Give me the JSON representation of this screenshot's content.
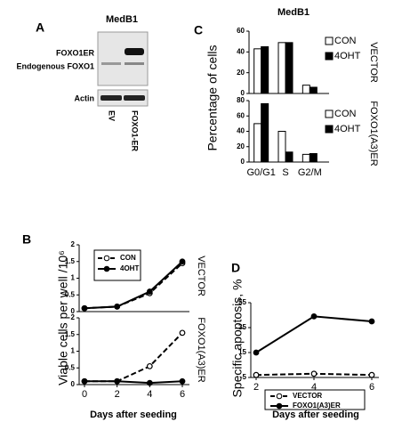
{
  "panel_labels": [
    "A",
    "B",
    "C",
    "D"
  ],
  "blot": {
    "title": "MedB1",
    "bands": [
      "FOXO1ER",
      "Endogenous FOXO1"
    ],
    "loading": "Actin",
    "lanes": [
      "EV",
      "FOXO1-ER"
    ]
  },
  "chart_data": [
    {
      "type": "bar",
      "title": "MedB1",
      "ylabel": "Percentage of cells",
      "side_label": "VECTOR",
      "categories": [
        null,
        null,
        null
      ],
      "ylim": [
        0,
        60
      ],
      "yticks": [
        0,
        20,
        40,
        60
      ],
      "legend": "upper right",
      "series": [
        {
          "name": "CON",
          "color": "#ffffff",
          "values": [
            43,
            49,
            8
          ]
        },
        {
          "name": "4OHT",
          "color": "#000000",
          "values": [
            45,
            49,
            6
          ]
        }
      ]
    },
    {
      "type": "bar",
      "side_label": "FOXO1(A3)ER",
      "categories": [
        "G0/G1",
        "S",
        "G2/M"
      ],
      "ylim": [
        0,
        80
      ],
      "yticks": [
        0,
        20,
        40,
        60,
        80
      ],
      "legend": "upper right",
      "series": [
        {
          "name": "CON",
          "color": "#ffffff",
          "values": [
            50,
            40,
            10
          ]
        },
        {
          "name": "4OHT",
          "color": "#000000",
          "values": [
            76,
            13,
            11
          ]
        }
      ]
    },
    {
      "type": "line",
      "ylabel": "Viable cells per well /10⁶",
      "side_label": "VECTOR",
      "x": [
        0,
        2,
        4,
        6
      ],
      "xlim": [
        0,
        6
      ],
      "ylim": [
        0,
        2
      ],
      "yticks": [
        0,
        0.5,
        1,
        1.5,
        2
      ],
      "legend": "upper left",
      "series": [
        {
          "name": "CON",
          "color": "#ffffff",
          "dashed": true,
          "values": [
            0.1,
            0.15,
            0.55,
            1.45
          ]
        },
        {
          "name": "4OHT",
          "color": "#000000",
          "dashed": false,
          "values": [
            0.1,
            0.15,
            0.6,
            1.5
          ]
        }
      ]
    },
    {
      "type": "line",
      "xlabel": "Days after seeding",
      "side_label": "FOXO1(A3)ER",
      "x": [
        0,
        2,
        4,
        6
      ],
      "xlim": [
        0,
        6
      ],
      "xticks": [
        0,
        2,
        4,
        6
      ],
      "ylim": [
        0,
        2
      ],
      "yticks": [
        0,
        0.5,
        1,
        1.5,
        2
      ],
      "series": [
        {
          "name": "CON",
          "color": "#ffffff",
          "dashed": true,
          "values": [
            0.1,
            0.1,
            0.55,
            1.55
          ]
        },
        {
          "name": "4OHT",
          "color": "#000000",
          "dashed": false,
          "values": [
            0.1,
            0.1,
            0.05,
            0.1
          ]
        }
      ]
    },
    {
      "type": "line",
      "ylabel": "Specific apoptosis, %",
      "xlabel": "Days after seeding",
      "x": [
        2,
        4,
        6
      ],
      "xlim": [
        2,
        6
      ],
      "xticks": [
        2,
        4,
        6
      ],
      "ylim": [
        -5,
        55
      ],
      "yticks": [
        -5,
        15,
        35,
        55
      ],
      "legend": "lower center",
      "series": [
        {
          "name": "VECTOR",
          "color": "#ffffff",
          "dashed": true,
          "values": [
            -3,
            -2,
            -3
          ]
        },
        {
          "name": "FOXO1(A3)ER",
          "color": "#000000",
          "dashed": false,
          "values": [
            15,
            44,
            40
          ]
        }
      ]
    }
  ]
}
